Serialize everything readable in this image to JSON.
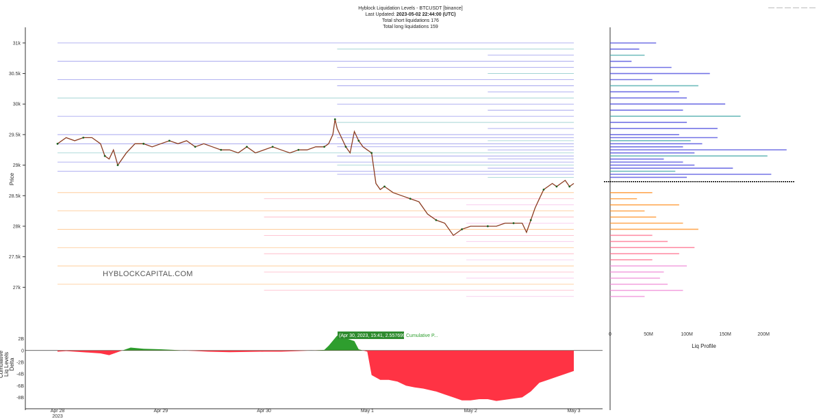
{
  "header": {
    "title": "Hyblock Liquidation Levels - BTCUSDT [binance]",
    "updated_prefix": "Last Updated: ",
    "updated_value": "2023-05-02 22:44:00 (UTC)",
    "short_liq": "Total short liquidations 176",
    "long_liq": "Total long liquidations 159"
  },
  "watermark": "HYBLOCKCAPITAL.COM",
  "tooltip": {
    "text": "(Apr 30, 2023, 15:41, 2.557699B)",
    "series": "Cumulative P..."
  },
  "colors": {
    "candle": "#8a3b20",
    "short_lines": "#4444dd",
    "short_lines_2": "#3fa6a6",
    "long_lines": "#ff8c1a",
    "long_lines_2": "#ff6b8a",
    "long_lines_3": "#f08ad8",
    "delta_pos": "#2e9e2e",
    "delta_neg": "#ff3344",
    "current_price": "#000000"
  },
  "chart_data": [
    {
      "type": "line",
      "name": "price",
      "title": "Hyblock Liquidation Levels - BTCUSDT [binance]",
      "ylabel": "Price",
      "ylim": [
        26500,
        31200
      ],
      "y_ticks": [
        "27k",
        "27.5k",
        "28k",
        "28.5k",
        "29k",
        "29.5k",
        "30k",
        "30.5k",
        "31k"
      ],
      "y_tick_values": [
        27000,
        27500,
        28000,
        28500,
        29000,
        29500,
        30000,
        30500,
        31000
      ],
      "x_ticks": [
        "Apr 28\n2023",
        "Apr 29",
        "Apr 30",
        "May 1",
        "May 2",
        "May 3"
      ],
      "x_range_hours": [
        0,
        120
      ],
      "x_tick_hours": [
        0,
        24,
        48,
        72,
        96,
        120
      ],
      "x": [
        0,
        2,
        4,
        6,
        8,
        10,
        11,
        12,
        13,
        14,
        16,
        18,
        20,
        22,
        24,
        26,
        28,
        30,
        32,
        34,
        36,
        38,
        40,
        42,
        44,
        46,
        48,
        50,
        52,
        54,
        56,
        58,
        60,
        62,
        63,
        64,
        64.5,
        65,
        66,
        67,
        68,
        69,
        70,
        71,
        72,
        73,
        74,
        75,
        76,
        78,
        80,
        82,
        84,
        86,
        88,
        90,
        92,
        94,
        96,
        98,
        100,
        102,
        104,
        106,
        108,
        109,
        110,
        111,
        112,
        113,
        114,
        115,
        116,
        117,
        118,
        119,
        120
      ],
      "y": [
        29350,
        29450,
        29400,
        29450,
        29450,
        29350,
        29150,
        29100,
        29250,
        29000,
        29200,
        29350,
        29350,
        29300,
        29350,
        29400,
        29350,
        29400,
        29300,
        29350,
        29300,
        29250,
        29250,
        29200,
        29300,
        29200,
        29250,
        29300,
        29250,
        29200,
        29250,
        29250,
        29300,
        29300,
        29350,
        29500,
        29750,
        29600,
        29450,
        29300,
        29200,
        29550,
        29400,
        29300,
        29250,
        29200,
        28700,
        28600,
        28650,
        28550,
        28500,
        28450,
        28400,
        28200,
        28100,
        28050,
        27850,
        27950,
        28000,
        28000,
        28000,
        28000,
        28050,
        28050,
        28050,
        27900,
        28100,
        28300,
        28450,
        28600,
        28650,
        28700,
        28650,
        28700,
        28750,
        28650,
        28700
      ]
    },
    {
      "type": "bar",
      "name": "Liq Profile",
      "xlabel": "Liq Profile",
      "x_ticks": [
        "0",
        "50M",
        "100M",
        "150M",
        "200M"
      ],
      "x_tick_values": [
        0,
        50,
        100,
        150,
        200
      ],
      "xlim": [
        0,
        240
      ],
      "current_price": 28730,
      "short_levels": [
        31000,
        30900,
        30800,
        30700,
        30600,
        30500,
        30400,
        30300,
        30200,
        30100,
        30000,
        29900,
        29800,
        29700,
        29600,
        29500,
        29450,
        29400,
        29350,
        29300,
        29250,
        29200,
        29150,
        29100,
        29050,
        29000,
        28950,
        28900,
        28850,
        28800
      ],
      "short_values_M": [
        60,
        38,
        45,
        28,
        80,
        130,
        55,
        115,
        90,
        100,
        150,
        95,
        170,
        100,
        140,
        90,
        140,
        105,
        120,
        95,
        230,
        110,
        205,
        70,
        95,
        110,
        160,
        85,
        210,
        100
      ],
      "long_levels": [
        28550,
        28450,
        28350,
        28250,
        28150,
        28050,
        27950,
        27850,
        27750,
        27650,
        27550,
        27450,
        27350,
        27250,
        27150,
        27050,
        26950,
        26850
      ],
      "long_values_M": [
        55,
        35,
        90,
        45,
        60,
        95,
        115,
        55,
        75,
        110,
        90,
        55,
        100,
        70,
        65,
        75,
        95,
        45
      ]
    },
    {
      "type": "area",
      "name": "Cumulative Liq Levels Delta",
      "ylabel": "Cumulative\nLiq Levels\nDelta",
      "ylim": [
        -9,
        3
      ],
      "y_ticks": [
        "2B",
        "0",
        "-2B",
        "-4B",
        "-6B",
        "-8B"
      ],
      "y_tick_values": [
        2,
        0,
        -2,
        -4,
        -6,
        -8
      ],
      "x": [
        0,
        2,
        10,
        12,
        17,
        20,
        24,
        35,
        40,
        48,
        52,
        56,
        62,
        63,
        65,
        69,
        70,
        72,
        73,
        75,
        77,
        79,
        81,
        83,
        85,
        88,
        90,
        92,
        94,
        96,
        98,
        100,
        102,
        104,
        106,
        108,
        110,
        112,
        114,
        116,
        118,
        120
      ],
      "values": [
        -0.2,
        -0.1,
        -0.5,
        -0.8,
        0.5,
        0.3,
        0.2,
        -0.2,
        -0.3,
        -0.2,
        -0.2,
        -0.1,
        0.1,
        0.8,
        2.55,
        1.6,
        0.2,
        -0.2,
        -4.2,
        -5.0,
        -5.0,
        -5.3,
        -6.0,
        -6.3,
        -6.5,
        -7.0,
        -7.5,
        -8.0,
        -8.5,
        -8.5,
        -8.3,
        -8.3,
        -8.6,
        -8.4,
        -8.2,
        -8.0,
        -7.0,
        -5.5,
        -5.0,
        -4.5,
        -4.0,
        -3.5
      ]
    }
  ]
}
